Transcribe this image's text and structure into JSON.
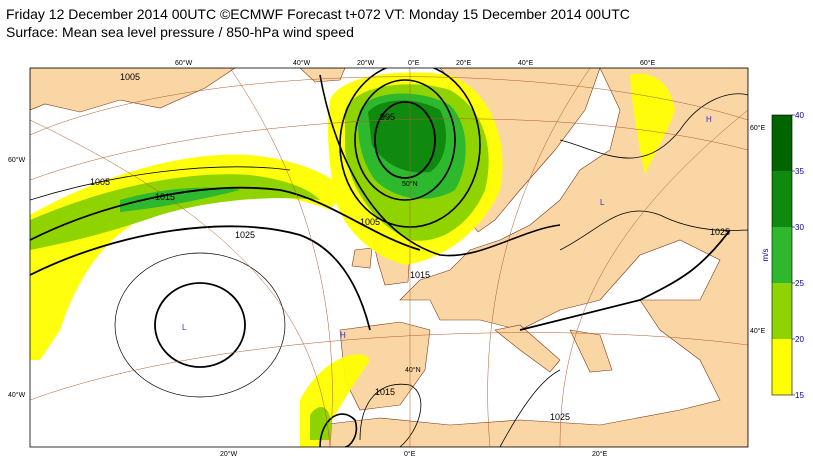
{
  "header": {
    "line1": "Friday 12 December 2014 00UTC ©ECMWF Forecast t+072 VT: Monday 15 December 2014 00UTC",
    "line2": "Surface: Mean sea level pressure / 850-hPa wind speed"
  },
  "map": {
    "top": [
      "60°W",
      "40°W",
      "20°W",
      "0°E",
      "20°E",
      "40°E",
      "60°E"
    ],
    "bottom": [
      "20°W",
      "0°E",
      "20°E"
    ],
    "left": [
      "60°W",
      "40°W"
    ],
    "right": [
      "60°E",
      "40°E"
    ],
    "inner": [
      "50°N",
      "40°N"
    ]
  },
  "isobars": [
    "1015",
    "1025",
    "1005",
    "1005",
    "995",
    "1005",
    "1015",
    "1015",
    "1025",
    "1025"
  ],
  "centres": [
    "L",
    "L",
    "H",
    "H"
  ],
  "legend": {
    "unit": "m/s",
    "levels": [
      15,
      20,
      25,
      30,
      35,
      40
    ],
    "colors": [
      "#ffff00",
      "#8fd400",
      "#2db82d",
      "#0f8a0f",
      "#006400"
    ]
  }
}
